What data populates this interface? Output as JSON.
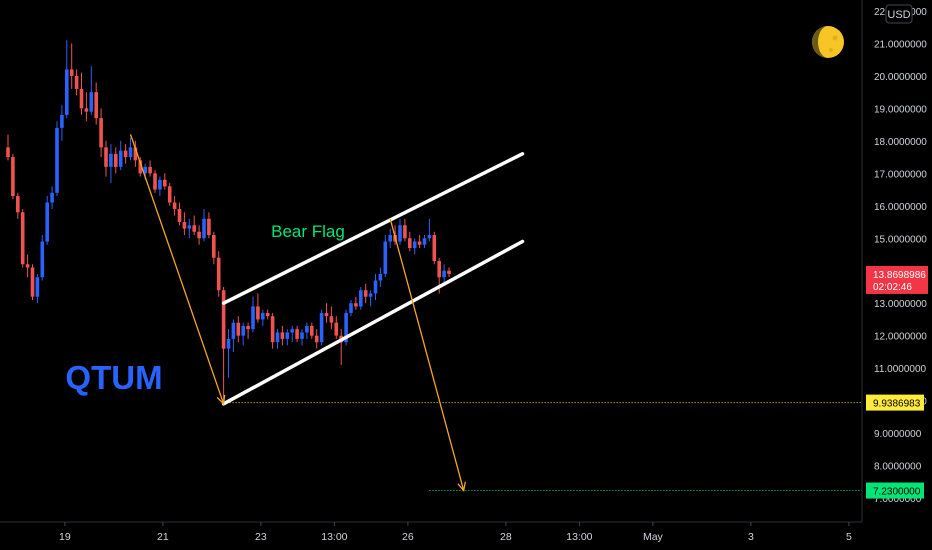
{
  "currency": "USD",
  "symbol_label": "QTUM",
  "pattern_label": "Bear Flag",
  "price_tag": {
    "price": "13.8698986",
    "countdown": "02:02:46"
  },
  "colors": {
    "up": "#2962ff",
    "down": "#ef5350",
    "bg": "#000000",
    "axis_text": "#d1d4dc",
    "symbol": "#2962ff",
    "pattern": "#00e676",
    "arrow": "#f5a623",
    "channel": "#ffffff",
    "level_support": "#ffeb3b",
    "level_target": "#00e676",
    "price_tag": "#f23645"
  },
  "icons": {
    "moon": "moon-icon"
  },
  "chart_data": {
    "type": "candlestick",
    "y_axis": {
      "range": [
        7.0,
        22.0
      ],
      "ticks": [
        "22.0000000",
        "21.0000000",
        "20.0000000",
        "19.0000000",
        "18.0000000",
        "17.0000000",
        "16.0000000",
        "15.0000000",
        "14.0000000",
        "13.0000000",
        "12.0000000",
        "11.0000000",
        "10.0000000",
        "9.0000000",
        "8.0000000",
        "7.0000000"
      ]
    },
    "x_axis": {
      "ticks": [
        "19",
        "21",
        "23",
        "13:00",
        "26",
        "28",
        "13:00",
        "May",
        "3",
        "5"
      ]
    },
    "candles": [
      [
        17.8,
        18.2,
        17.4,
        17.5
      ],
      [
        17.5,
        17.6,
        16.2,
        16.3
      ],
      [
        16.3,
        16.4,
        15.6,
        15.8
      ],
      [
        15.8,
        15.9,
        14.1,
        14.2
      ],
      [
        14.2,
        14.5,
        13.8,
        14.1
      ],
      [
        14.1,
        14.2,
        13.1,
        13.2
      ],
      [
        13.2,
        13.9,
        13.0,
        13.8
      ],
      [
        13.8,
        15.1,
        13.7,
        14.9
      ],
      [
        14.9,
        16.3,
        14.8,
        16.1
      ],
      [
        16.1,
        16.6,
        15.9,
        16.4
      ],
      [
        16.4,
        18.6,
        16.3,
        18.4
      ],
      [
        18.4,
        19.1,
        18.0,
        18.8
      ],
      [
        18.8,
        21.1,
        18.7,
        20.2
      ],
      [
        20.2,
        21.0,
        19.6,
        20.0
      ],
      [
        20.0,
        20.2,
        19.4,
        19.6
      ],
      [
        19.6,
        20.1,
        18.8,
        19.0
      ],
      [
        19.0,
        19.5,
        18.6,
        18.9
      ],
      [
        18.9,
        20.3,
        18.8,
        19.5
      ],
      [
        19.5,
        19.8,
        18.5,
        18.7
      ],
      [
        18.7,
        19.0,
        17.5,
        17.8
      ],
      [
        17.8,
        18.0,
        16.9,
        17.2
      ],
      [
        17.2,
        17.9,
        16.7,
        17.6
      ],
      [
        17.6,
        17.8,
        17.0,
        17.2
      ],
      [
        17.2,
        18.0,
        17.1,
        17.7
      ],
      [
        17.7,
        17.9,
        17.3,
        17.5
      ],
      [
        17.5,
        18.1,
        17.4,
        17.8
      ],
      [
        17.8,
        18.0,
        17.2,
        17.4
      ],
      [
        17.4,
        17.5,
        16.9,
        17.0
      ],
      [
        17.0,
        17.3,
        16.8,
        17.2
      ],
      [
        17.2,
        17.4,
        16.9,
        17.0
      ],
      [
        17.0,
        17.1,
        16.4,
        16.5
      ],
      [
        16.5,
        16.9,
        16.3,
        16.8
      ],
      [
        16.8,
        17.0,
        16.5,
        16.6
      ],
      [
        16.6,
        16.7,
        16.0,
        16.1
      ],
      [
        16.1,
        16.3,
        15.7,
        15.9
      ],
      [
        15.9,
        16.1,
        15.4,
        15.5
      ],
      [
        15.5,
        15.8,
        15.1,
        15.3
      ],
      [
        15.3,
        15.6,
        15.0,
        15.4
      ],
      [
        15.4,
        15.7,
        15.1,
        15.2
      ],
      [
        15.2,
        15.4,
        14.8,
        15.0
      ],
      [
        15.0,
        15.9,
        14.9,
        15.6
      ],
      [
        15.6,
        15.8,
        15.0,
        15.1
      ],
      [
        15.1,
        15.2,
        14.2,
        14.4
      ],
      [
        14.4,
        14.6,
        13.2,
        13.4
      ],
      [
        13.4,
        13.5,
        9.9,
        11.6
      ],
      [
        11.6,
        12.2,
        10.7,
        11.9
      ],
      [
        11.9,
        12.5,
        11.5,
        12.4
      ],
      [
        12.4,
        12.6,
        11.8,
        12.0
      ],
      [
        12.0,
        12.4,
        11.7,
        12.3
      ],
      [
        12.3,
        12.4,
        11.9,
        12.2
      ],
      [
        12.2,
        13.2,
        12.1,
        12.9
      ],
      [
        12.9,
        13.3,
        12.4,
        12.5
      ],
      [
        12.5,
        12.8,
        12.3,
        12.7
      ],
      [
        12.7,
        12.8,
        12.5,
        12.6
      ],
      [
        12.6,
        12.7,
        11.6,
        11.8
      ],
      [
        11.8,
        12.2,
        11.6,
        12.1
      ],
      [
        12.1,
        12.3,
        11.7,
        11.9
      ],
      [
        11.9,
        12.2,
        11.7,
        12.1
      ],
      [
        12.1,
        12.3,
        11.8,
        12.2
      ],
      [
        12.2,
        12.3,
        11.8,
        11.9
      ],
      [
        11.9,
        12.2,
        11.7,
        12.1
      ],
      [
        12.1,
        12.4,
        11.9,
        12.3
      ],
      [
        12.3,
        12.4,
        11.9,
        12.0
      ],
      [
        12.0,
        12.2,
        11.6,
        11.8
      ],
      [
        11.8,
        12.8,
        11.7,
        12.7
      ],
      [
        12.7,
        13.0,
        12.4,
        12.6
      ],
      [
        12.6,
        12.9,
        12.2,
        12.4
      ],
      [
        12.4,
        12.6,
        11.9,
        12.0
      ],
      [
        12.0,
        12.2,
        11.1,
        11.8
      ],
      [
        11.8,
        12.8,
        11.7,
        12.7
      ],
      [
        12.7,
        13.1,
        12.6,
        13.0
      ],
      [
        13.0,
        13.2,
        12.8,
        12.9
      ],
      [
        12.9,
        13.5,
        12.8,
        13.4
      ],
      [
        13.4,
        13.6,
        13.0,
        13.2
      ],
      [
        13.2,
        13.4,
        12.9,
        13.3
      ],
      [
        13.3,
        13.9,
        13.1,
        13.7
      ],
      [
        13.7,
        14.1,
        13.5,
        13.9
      ],
      [
        13.9,
        15.1,
        13.8,
        14.9
      ],
      [
        14.9,
        15.3,
        14.7,
        15.1
      ],
      [
        15.1,
        15.4,
        14.8,
        14.9
      ],
      [
        14.9,
        15.6,
        14.8,
        15.4
      ],
      [
        15.4,
        15.6,
        14.9,
        15.0
      ],
      [
        15.0,
        15.2,
        14.6,
        14.7
      ],
      [
        14.7,
        15.0,
        14.5,
        14.9
      ],
      [
        14.9,
        15.1,
        14.7,
        14.8
      ],
      [
        14.8,
        15.1,
        14.7,
        15.0
      ],
      [
        15.0,
        15.6,
        14.9,
        15.1
      ],
      [
        15.1,
        15.2,
        14.2,
        14.3
      ],
      [
        14.3,
        14.4,
        13.3,
        13.8
      ],
      [
        13.8,
        14.2,
        13.6,
        14.0
      ],
      [
        14.0,
        14.1,
        13.8,
        13.9
      ]
    ],
    "annotations": {
      "channel_upper": [
        {
          "t": 44,
          "p": 13.0
        },
        {
          "t": 105,
          "p": 17.6
        }
      ],
      "channel_lower": [
        {
          "t": 44,
          "p": 9.9
        },
        {
          "t": 105,
          "p": 14.9
        }
      ],
      "arrow_down_1": [
        {
          "t": 25,
          "p": 18.2
        },
        {
          "t": 44,
          "p": 9.9
        }
      ],
      "arrow_down_2": [
        {
          "t": 78,
          "p": 15.6
        },
        {
          "t": 93,
          "p": 7.23
        }
      ],
      "level_support": 9.9386983,
      "level_target": 7.23
    },
    "level_labels": {
      "support": "9.9386983",
      "target": "7.2300000"
    }
  }
}
